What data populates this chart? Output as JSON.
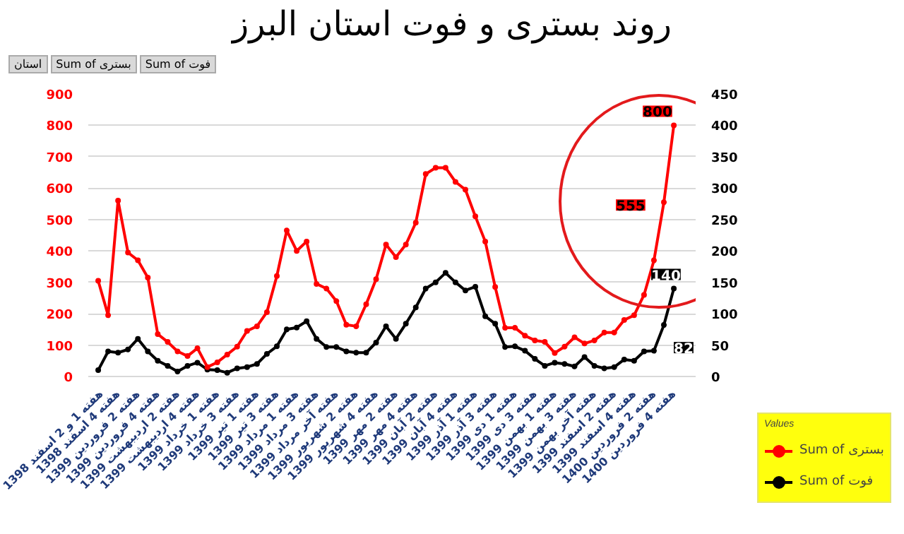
{
  "chart_data": {
    "type": "line",
    "title": "روند بستری و فوت استان البرز",
    "categories": [
      "هفته 1 و 2 اسفند 1398",
      null,
      "هفته 4 اسفند 1398",
      null,
      "هفته 2 فروردین 1399",
      null,
      "هفته 4 فروردین 1399",
      null,
      "هفته 2 اردیبهشت 1399",
      null,
      "هفته 4 اردیبهشت 1399",
      null,
      "هفته 1 خرداد 1399",
      null,
      "هفته 3 خرداد 1399",
      null,
      "هفته 1 تیر 1399",
      null,
      "هفته 3 تیر 1399",
      null,
      "هفته 1 مرداد 1399",
      null,
      "هفته 3 مرداد 1399",
      null,
      "هفته آخر مرداد 1399",
      null,
      "هفته 2 شهریور 1399",
      null,
      "هفته 4 شهریور 1399",
      null,
      "هفته 2 مهر 1399",
      null,
      "هفته 4 مهر 1399",
      null,
      "هفته 2 آبان 1399",
      null,
      "هفته 4 آبان 1399",
      null,
      "هفته 1 آذر 1399",
      null,
      "هفته 3 آذر 1399",
      null,
      "هفته 1 دی 1399",
      null,
      "هفته 3 دی 1399",
      null,
      "هفته 1 بهمن 1399",
      null,
      "هفته 3 بهمن 1399",
      null,
      "هفته آخر بهمن 1399",
      null,
      "هفته 2 اسفند 1399",
      null,
      "هفته 4 اسفند 1399",
      null,
      "هفته 2 فروردین 1400",
      null,
      "هفته 4 فروردین 1400"
    ],
    "series": [
      {
        "name": "Sum of بستری",
        "color": "#ff0000",
        "values": [
          305,
          195,
          560,
          395,
          370,
          315,
          135,
          110,
          80,
          65,
          90,
          30,
          45,
          70,
          95,
          145,
          160,
          205,
          320,
          465,
          400,
          430,
          295,
          280,
          240,
          165,
          160,
          230,
          310,
          420,
          380,
          420,
          490,
          645,
          665,
          665,
          620,
          595,
          510,
          430,
          285,
          155,
          155,
          130,
          115,
          110,
          75,
          95,
          125,
          105,
          115,
          140,
          140,
          180,
          195,
          260,
          370,
          555,
          800
        ],
        "value_labels": [
          null,
          null,
          null,
          null,
          null,
          null,
          null,
          null,
          null,
          null,
          null,
          null,
          null,
          null,
          null,
          null,
          null,
          null,
          null,
          null,
          null,
          null,
          null,
          null,
          null,
          null,
          null,
          null,
          null,
          null,
          null,
          null,
          null,
          null,
          null,
          null,
          null,
          null,
          null,
          null,
          null,
          null,
          null,
          null,
          null,
          null,
          null,
          null,
          null,
          null,
          null,
          null,
          null,
          null,
          null,
          null,
          null,
          "555",
          "800"
        ]
      },
      {
        "name": "Sum of فوت",
        "color": "#000000",
        "axis": "y2",
        "values": [
          10,
          40,
          38,
          43,
          60,
          40,
          25,
          17,
          8,
          17,
          22,
          11,
          10,
          6,
          13,
          15,
          20,
          36,
          48,
          75,
          78,
          88,
          60,
          47,
          47,
          40,
          38,
          38,
          54,
          80,
          60,
          84,
          110,
          140,
          150,
          165,
          150,
          137,
          143,
          96,
          84,
          47,
          48,
          41,
          28,
          17,
          22,
          20,
          16,
          31,
          17,
          13,
          15,
          27,
          25,
          40,
          41,
          82,
          140
        ],
        "value_labels": [
          null,
          null,
          null,
          null,
          null,
          null,
          null,
          null,
          null,
          null,
          null,
          null,
          null,
          null,
          null,
          null,
          null,
          null,
          null,
          null,
          null,
          null,
          null,
          null,
          null,
          null,
          null,
          null,
          null,
          null,
          null,
          null,
          null,
          null,
          null,
          null,
          null,
          null,
          null,
          null,
          null,
          null,
          null,
          null,
          null,
          null,
          null,
          null,
          null,
          null,
          null,
          null,
          null,
          null,
          null,
          null,
          null,
          "82",
          "140"
        ]
      }
    ],
    "ylim": [
      0,
      900
    ],
    "yticks": [
      0,
      100,
      200,
      300,
      400,
      500,
      600,
      700,
      800,
      900
    ],
    "y2lim": [
      0,
      450
    ],
    "y2ticks": [
      0,
      50,
      100,
      150,
      200,
      250,
      300,
      350,
      400,
      450
    ],
    "grid": "y",
    "legend": "bottom right",
    "legend_title": "Values",
    "marker": "circle",
    "line_style": "solid",
    "annotations": [
      "استان",
      "Sum of بستری",
      "Sum of فوت"
    ]
  }
}
